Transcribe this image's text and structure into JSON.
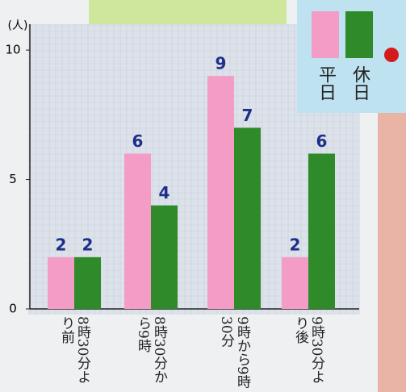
{
  "chart_data": {
    "type": "bar",
    "y_label": "(人)",
    "categories": [
      "8時30分より前",
      "8時30分から9時",
      "9時から9時30分",
      "9時30分より後"
    ],
    "series": [
      {
        "name": "平日",
        "color": "#f29cc6",
        "values": [
          2,
          6,
          9,
          2
        ]
      },
      {
        "name": "休日",
        "color": "#2f8a2a",
        "values": [
          2,
          4,
          7,
          6
        ]
      }
    ],
    "ylim": [
      0,
      11
    ],
    "yticks": [
      0,
      5,
      10
    ],
    "grid": true
  }
}
